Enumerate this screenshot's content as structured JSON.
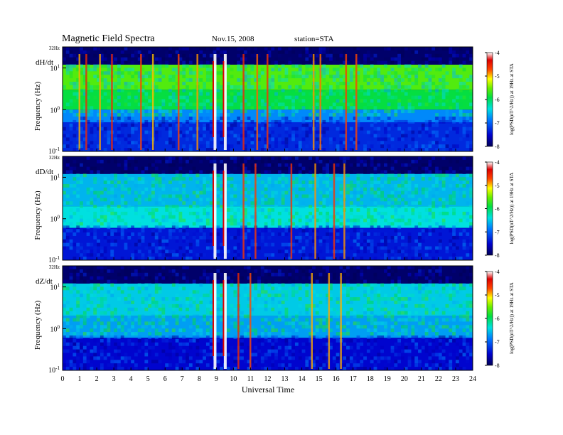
{
  "header": {
    "title": "Magnetic  Field  Spectra",
    "date": "Nov.15, 2008",
    "station": "station=STA"
  },
  "chart_data": [
    {
      "type": "heatmap",
      "panel_label": "dH/dt",
      "ylabel": "Frequency  (Hz)",
      "xlabel": "Universal Time",
      "top_label": "32Hz",
      "y_scale": "log",
      "ylim": [
        0.1,
        32
      ],
      "y_ticks": [
        {
          "base": "10",
          "exp": "1",
          "value": 10
        },
        {
          "base": "10",
          "exp": "0",
          "value": 1
        },
        {
          "base": "10",
          "exp": "-1",
          "value": 0.1
        }
      ],
      "xlim": [
        0,
        24
      ],
      "x_ticks": [
        0,
        1,
        2,
        3,
        4,
        5,
        6,
        7,
        8,
        9,
        10,
        11,
        12,
        13,
        14,
        15,
        16,
        17,
        18,
        19,
        20,
        21,
        22,
        23,
        24
      ],
      "colorbar": {
        "label": "log(PSD(nT^2/Hz)) at 19Hz at STA",
        "range": [
          -8,
          -4
        ],
        "ticks": [
          "-4",
          "-5",
          "-6",
          "-7",
          "-8"
        ]
      },
      "bands": [
        {
          "f_low": 3,
          "f_high": 12,
          "level": -5.6
        },
        {
          "f_low": 1,
          "f_high": 3,
          "level": -5.9
        },
        {
          "f_low": 0.5,
          "f_high": 1,
          "level": -6.8
        },
        {
          "f_low": 0.1,
          "f_high": 0.5,
          "level": -7.3
        }
      ],
      "bursts_ut": [
        1.0,
        1.4,
        2.2,
        2.9,
        4.6,
        5.3,
        6.8,
        7.9,
        8.9,
        9.5,
        10.6,
        11.4,
        12.0,
        14.7,
        15.1,
        16.6,
        17.2
      ]
    },
    {
      "type": "heatmap",
      "panel_label": "dD/dt",
      "ylabel": "Frequency  (Hz)",
      "xlabel": "Universal Time",
      "top_label": "32Hz",
      "y_scale": "log",
      "ylim": [
        0.1,
        32
      ],
      "y_ticks": [
        {
          "base": "10",
          "exp": "1",
          "value": 10
        },
        {
          "base": "10",
          "exp": "0",
          "value": 1
        },
        {
          "base": "10",
          "exp": "-1",
          "value": 0.1
        }
      ],
      "xlim": [
        0,
        24
      ],
      "x_ticks": [
        0,
        1,
        2,
        3,
        4,
        5,
        6,
        7,
        8,
        9,
        10,
        11,
        12,
        13,
        14,
        15,
        16,
        17,
        18,
        19,
        20,
        21,
        22,
        23,
        24
      ],
      "colorbar": {
        "label": "log(PSD(nT^2/Hz)) at 19Hz at STA",
        "range": [
          -8,
          -4
        ],
        "ticks": [
          "-4",
          "-5",
          "-6",
          "-7",
          "-8"
        ]
      },
      "bands": [
        {
          "f_low": 2,
          "f_high": 12,
          "level": -6.6
        },
        {
          "f_low": 0.6,
          "f_high": 2,
          "level": -6.4
        },
        {
          "f_low": 0.1,
          "f_high": 0.6,
          "level": -7.4
        }
      ],
      "bursts_ut": [
        8.9,
        9.5,
        10.6,
        11.3,
        13.4,
        14.8,
        15.9,
        16.5
      ]
    },
    {
      "type": "heatmap",
      "panel_label": "dZ/dt",
      "ylabel": "Frequency  (Hz)",
      "xlabel": "Universal Time",
      "top_label": "32Hz",
      "y_scale": "log",
      "ylim": [
        0.1,
        32
      ],
      "y_ticks": [
        {
          "base": "10",
          "exp": "1",
          "value": 10
        },
        {
          "base": "10",
          "exp": "0",
          "value": 1
        },
        {
          "base": "10",
          "exp": "-1",
          "value": 0.1
        }
      ],
      "xlim": [
        0,
        24
      ],
      "x_ticks": [
        0,
        1,
        2,
        3,
        4,
        5,
        6,
        7,
        8,
        9,
        10,
        11,
        12,
        13,
        14,
        15,
        16,
        17,
        18,
        19,
        20,
        21,
        22,
        23,
        24
      ],
      "colorbar": {
        "label": "log(PSD(nT^2/Hz)) at 19Hz at STA",
        "range": [
          -8,
          -4
        ],
        "ticks": [
          "-4",
          "-5",
          "-6",
          "-7",
          "-8"
        ]
      },
      "bands": [
        {
          "f_low": 2,
          "f_high": 12,
          "level": -6.5
        },
        {
          "f_low": 0.6,
          "f_high": 2,
          "level": -6.7
        },
        {
          "f_low": 0.1,
          "f_high": 0.6,
          "level": -7.5
        }
      ],
      "bursts_ut": [
        8.9,
        9.5,
        10.3,
        11.0,
        14.6,
        15.6,
        16.3
      ]
    }
  ]
}
